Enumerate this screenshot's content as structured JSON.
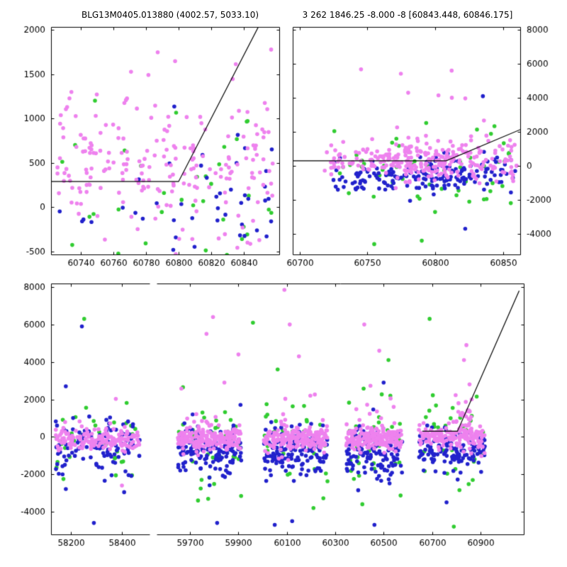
{
  "titles": {
    "left": "BLG13M0405.013880 (4002.57, 5033.10)",
    "right": "3 262 1846.25 -8.000 -8 [60843.448, 60846.175]"
  },
  "colors": {
    "pink": "#EE82EE",
    "green": "#32CD32",
    "blue": "#2222CC",
    "line": "#000000"
  },
  "chart_data": [
    {
      "id": "top-left",
      "type": "scatter",
      "xlim": [
        60722,
        60862
      ],
      "ylim": [
        -540,
        2035
      ],
      "xticks": [
        60740,
        60760,
        60780,
        60800,
        60820,
        60840
      ],
      "yticks": [
        -500,
        0,
        500,
        1000,
        1500,
        2000
      ],
      "ylabel_side": "left",
      "line": [
        [
          60722,
          290
        ],
        [
          60800,
          290
        ],
        [
          60852,
          2150
        ]
      ],
      "clusters": [
        {
          "color": "pink",
          "n": 120,
          "x": [
            60725,
            60858
          ],
          "y_mean": 420,
          "y_std": 230,
          "seed": 1
        },
        {
          "color": "pink",
          "n": 110,
          "x": [
            60725,
            60858
          ],
          "y_mean": 650,
          "y_std": 800,
          "seed": 2
        },
        {
          "color": "green",
          "n": 42,
          "x": [
            60725,
            60858
          ],
          "y_mean": 50,
          "y_std": 650,
          "seed": 3
        },
        {
          "color": "blue",
          "n": 38,
          "x": [
            60792,
            60858
          ],
          "y_mean": -60,
          "y_std": 520,
          "seed": 4
        },
        {
          "color": "blue",
          "n": 16,
          "x": [
            60726,
            60795
          ],
          "y_mean": -120,
          "y_std": 420,
          "seed": 5
        }
      ],
      "outliers": []
    },
    {
      "id": "top-right",
      "type": "scatter",
      "xlim": [
        60695,
        60863
      ],
      "ylim": [
        -5250,
        8170
      ],
      "xticks": [
        60700,
        60750,
        60800,
        60850
      ],
      "yticks": [
        -4000,
        -2000,
        0,
        2000,
        4000,
        6000,
        8000
      ],
      "ylabel_side": "right",
      "line": [
        [
          60695,
          300
        ],
        [
          60808,
          300
        ],
        [
          60863,
          2150
        ]
      ],
      "clusters": [
        {
          "color": "pink",
          "n": 120,
          "x": [
            60718,
            60802
          ],
          "y_mean": 280,
          "y_std": 420,
          "seed": 11
        },
        {
          "color": "pink",
          "n": 150,
          "x": [
            60775,
            60860
          ],
          "y_mean": 350,
          "y_std": 600,
          "seed": 12
        },
        {
          "color": "pink",
          "n": 12,
          "x": [
            60740,
            60850
          ],
          "y_mean": 2600,
          "y_std": 1200,
          "seed": 13
        },
        {
          "color": "blue",
          "n": 110,
          "x": [
            60725,
            60820
          ],
          "y_mean": -650,
          "y_std": 420,
          "seed": 14
        },
        {
          "color": "blue",
          "n": 70,
          "x": [
            60790,
            60860
          ],
          "y_mean": -500,
          "y_std": 600,
          "seed": 15
        },
        {
          "color": "green",
          "n": 55,
          "x": [
            60715,
            60860
          ],
          "y_mean": -300,
          "y_std": 1300,
          "seed": 16
        }
      ],
      "outliers": [
        {
          "color": "pink",
          "x": 60812,
          "y": 5600
        },
        {
          "color": "blue",
          "x": 60835,
          "y": 4100
        },
        {
          "color": "pink",
          "x": 60780,
          "y": 4300
        },
        {
          "color": "green",
          "x": 60755,
          "y": -4600
        },
        {
          "color": "blue",
          "x": 60822,
          "y": -3700
        },
        {
          "color": "green",
          "x": 60790,
          "y": -4400
        }
      ]
    },
    {
      "id": "bottom",
      "type": "scatter",
      "broken": true,
      "segments": [
        {
          "xlim": [
            58122,
            58511
          ],
          "xticks": [
            58200,
            58400
          ]
        },
        {
          "xlim": [
            59562,
            61082
          ],
          "xticks": [
            59700,
            59900,
            60100,
            60300,
            60500,
            60700,
            60900
          ]
        }
      ],
      "ylim": [
        -5250,
        8190
      ],
      "yticks": [
        -4000,
        -2000,
        0,
        2000,
        4000,
        6000,
        8000
      ],
      "ylabel_side": "left",
      "line": {
        "segment": 1,
        "points": [
          [
            60660,
            300
          ],
          [
            60805,
            300
          ],
          [
            61060,
            7800
          ]
        ]
      },
      "clusters": [
        {
          "color": "pink",
          "segment": 0,
          "n": 150,
          "x": [
            58140,
            58470
          ],
          "y_mean": -150,
          "y_std": 270,
          "seed": 21
        },
        {
          "color": "pink",
          "segment": 0,
          "n": 20,
          "x": [
            58150,
            58460
          ],
          "y_mean": 200,
          "y_std": 700,
          "seed": 24
        },
        {
          "color": "blue",
          "segment": 0,
          "n": 115,
          "x": [
            58140,
            58470
          ],
          "y_mean": -450,
          "y_std": 750,
          "seed": 22
        },
        {
          "color": "green",
          "segment": 0,
          "n": 36,
          "x": [
            58140,
            58470
          ],
          "y_mean": -300,
          "y_std": 1250,
          "seed": 23
        },
        {
          "color": "pink",
          "segment": 1,
          "n": 190,
          "x": [
            59650,
            59912
          ],
          "y_mean": -100,
          "y_std": 290,
          "seed": 31
        },
        {
          "color": "pink",
          "segment": 1,
          "n": 18,
          "x": [
            59660,
            59900
          ],
          "y_mean": 600,
          "y_std": 1000,
          "seed": 34
        },
        {
          "color": "blue",
          "segment": 1,
          "n": 145,
          "x": [
            59650,
            59912
          ],
          "y_mean": -700,
          "y_std": 650,
          "seed": 32
        },
        {
          "color": "green",
          "segment": 1,
          "n": 40,
          "x": [
            59650,
            59912
          ],
          "y_mean": -400,
          "y_std": 1250,
          "seed": 33
        },
        {
          "color": "pink",
          "segment": 1,
          "n": 190,
          "x": [
            60005,
            60268
          ],
          "y_mean": -100,
          "y_std": 290,
          "seed": 41
        },
        {
          "color": "pink",
          "segment": 1,
          "n": 18,
          "x": [
            60015,
            60255
          ],
          "y_mean": 600,
          "y_std": 1000,
          "seed": 44
        },
        {
          "color": "blue",
          "segment": 1,
          "n": 145,
          "x": [
            60005,
            60268
          ],
          "y_mean": -800,
          "y_std": 680,
          "seed": 42
        },
        {
          "color": "green",
          "segment": 1,
          "n": 38,
          "x": [
            60005,
            60268
          ],
          "y_mean": -400,
          "y_std": 1250,
          "seed": 43
        },
        {
          "color": "pink",
          "segment": 1,
          "n": 180,
          "x": [
            60345,
            60578
          ],
          "y_mean": -100,
          "y_std": 290,
          "seed": 51
        },
        {
          "color": "pink",
          "segment": 1,
          "n": 16,
          "x": [
            60355,
            60565
          ],
          "y_mean": 600,
          "y_std": 1000,
          "seed": 54
        },
        {
          "color": "blue",
          "segment": 1,
          "n": 135,
          "x": [
            60345,
            60578
          ],
          "y_mean": -800,
          "y_std": 680,
          "seed": 52
        },
        {
          "color": "green",
          "segment": 1,
          "n": 36,
          "x": [
            60345,
            60578
          ],
          "y_mean": -400,
          "y_std": 1250,
          "seed": 53
        },
        {
          "color": "pink",
          "segment": 1,
          "n": 165,
          "x": [
            60645,
            60918
          ],
          "y_mean": 0,
          "y_std": 330,
          "seed": 61
        },
        {
          "color": "pink",
          "segment": 1,
          "n": 28,
          "x": [
            60795,
            60865
          ],
          "y_mean": 900,
          "y_std": 650,
          "seed": 62
        },
        {
          "color": "blue",
          "segment": 1,
          "n": 130,
          "x": [
            60645,
            60918
          ],
          "y_mean": -700,
          "y_std": 500,
          "seed": 63
        },
        {
          "color": "green",
          "segment": 1,
          "n": 34,
          "x": [
            60645,
            60918
          ],
          "y_mean": -300,
          "y_std": 1300,
          "seed": 64
        }
      ],
      "outliers": [
        {
          "color": "green",
          "segment": 0,
          "x": 58252,
          "y": 6300
        },
        {
          "color": "blue",
          "segment": 0,
          "x": 58243,
          "y": 5900
        },
        {
          "color": "blue",
          "segment": 0,
          "x": 58180,
          "y": 2700
        },
        {
          "color": "blue",
          "segment": 0,
          "x": 58290,
          "y": -4600
        },
        {
          "color": "pink",
          "segment": 0,
          "x": 58400,
          "y": -2600
        },
        {
          "color": "pink",
          "segment": 1,
          "x": 59795,
          "y": 6400
        },
        {
          "color": "pink",
          "segment": 1,
          "x": 59768,
          "y": 5500
        },
        {
          "color": "green",
          "segment": 1,
          "x": 59960,
          "y": 6100
        },
        {
          "color": "pink",
          "segment": 1,
          "x": 59842,
          "y": 2900
        },
        {
          "color": "blue",
          "segment": 1,
          "x": 59812,
          "y": -4600
        },
        {
          "color": "green",
          "segment": 1,
          "x": 59733,
          "y": -3400
        },
        {
          "color": "pink",
          "segment": 1,
          "x": 59900,
          "y": 4400
        },
        {
          "color": "pink",
          "segment": 1,
          "x": 60090,
          "y": 7850
        },
        {
          "color": "pink",
          "segment": 1,
          "x": 60112,
          "y": 6000
        },
        {
          "color": "pink",
          "segment": 1,
          "x": 60150,
          "y": 4300
        },
        {
          "color": "green",
          "segment": 1,
          "x": 60062,
          "y": 3600
        },
        {
          "color": "blue",
          "segment": 1,
          "x": 60122,
          "y": -4500
        },
        {
          "color": "blue",
          "segment": 1,
          "x": 60050,
          "y": -4700
        },
        {
          "color": "green",
          "segment": 1,
          "x": 60210,
          "y": -3800
        },
        {
          "color": "pink",
          "segment": 1,
          "x": 60420,
          "y": 6000
        },
        {
          "color": "pink",
          "segment": 1,
          "x": 60482,
          "y": 4600
        },
        {
          "color": "green",
          "segment": 1,
          "x": 60520,
          "y": 4100
        },
        {
          "color": "blue",
          "segment": 1,
          "x": 60500,
          "y": 2900
        },
        {
          "color": "blue",
          "segment": 1,
          "x": 60462,
          "y": -4700
        },
        {
          "color": "green",
          "segment": 1,
          "x": 60412,
          "y": -3600
        },
        {
          "color": "pink",
          "segment": 1,
          "x": 60842,
          "y": 4900
        },
        {
          "color": "pink",
          "segment": 1,
          "x": 60832,
          "y": 4100
        },
        {
          "color": "green",
          "segment": 1,
          "x": 60690,
          "y": 6300
        },
        {
          "color": "green",
          "segment": 1,
          "x": 60790,
          "y": -4800
        },
        {
          "color": "blue",
          "segment": 1,
          "x": 60760,
          "y": -3500
        },
        {
          "color": "pink",
          "segment": 1,
          "x": 60855,
          "y": 2800
        }
      ]
    }
  ]
}
